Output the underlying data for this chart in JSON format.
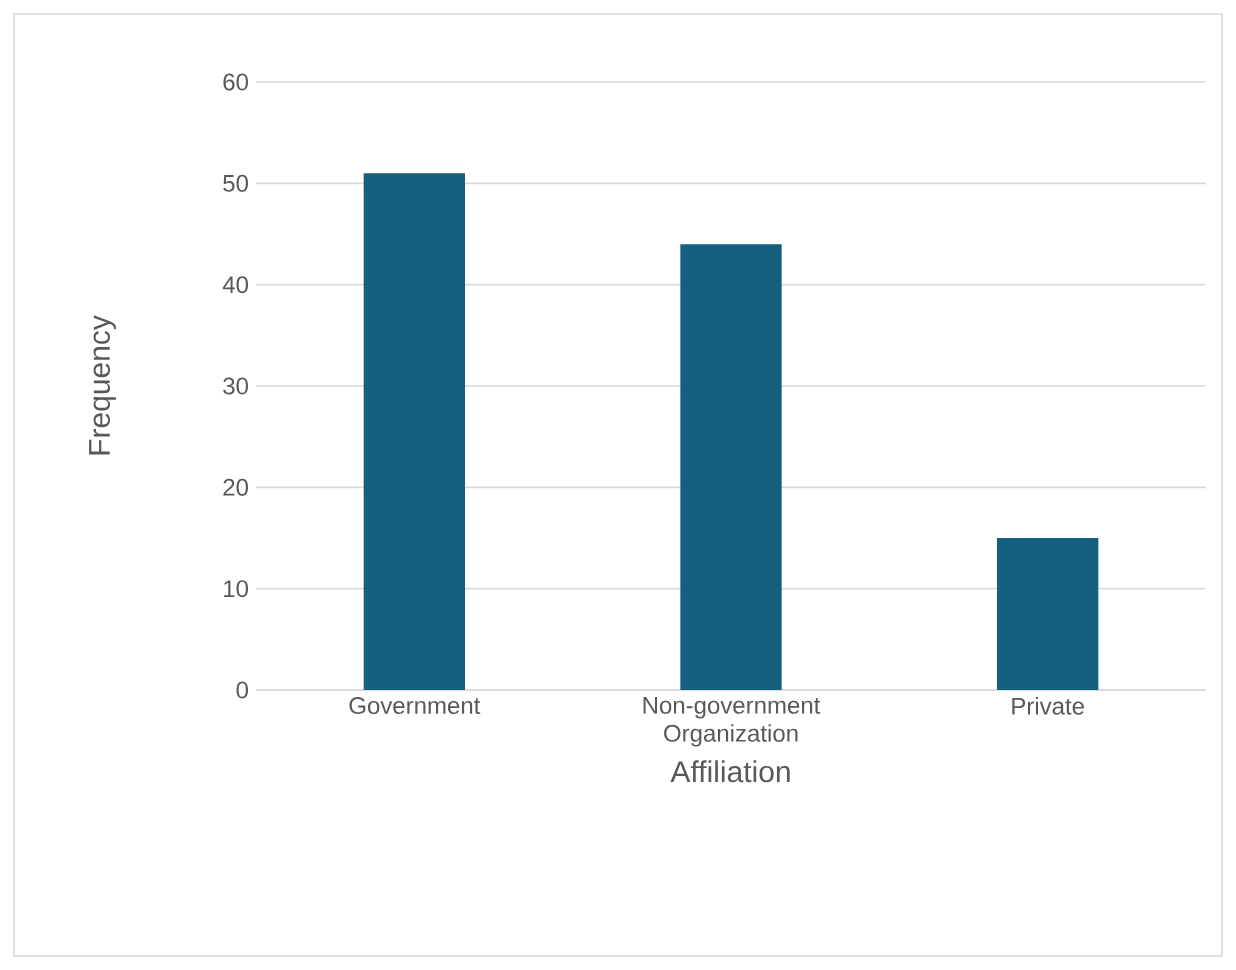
{
  "chart_data": {
    "type": "bar",
    "categories": [
      "Government",
      "Non-government Organization",
      "Private"
    ],
    "values": [
      51,
      44,
      15
    ],
    "color": "#155f7f",
    "xlabel": "Affiliation",
    "ylabel": "Frequency",
    "ylim": [
      0,
      60
    ],
    "yticks": [
      0,
      10,
      20,
      30,
      40,
      50,
      60
    ],
    "grid": "y"
  }
}
